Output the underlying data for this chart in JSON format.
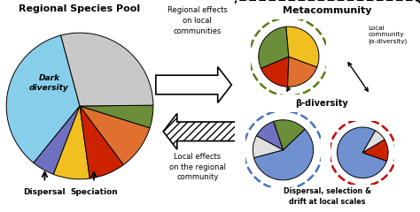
{
  "title_left": "Regional Species Pool",
  "title_right": "Metacommunity",
  "big_pie": {
    "sizes": [
      35,
      5,
      8,
      8,
      10,
      5,
      29
    ],
    "colors": [
      "#87CEEB",
      "#7070C0",
      "#F0C020",
      "#CC2200",
      "#E07030",
      "#6B8E3A",
      "#C8C8C8"
    ],
    "startangle": 105
  },
  "top_pie": {
    "sizes": [
      30,
      18,
      20,
      32
    ],
    "colors": [
      "#6B8E3A",
      "#CC2200",
      "#E07030",
      "#F0C020"
    ],
    "startangle": 95
  },
  "left_pie": {
    "sizes": [
      58,
      18,
      12,
      12
    ],
    "colors": [
      "#7090D0",
      "#6B8E3A",
      "#7070C0",
      "#E0E0E0"
    ],
    "startangle": 195
  },
  "right_pie": {
    "sizes": [
      78,
      14,
      8
    ],
    "colors": [
      "#7090D0",
      "#CC2200",
      "#E0E0E0"
    ],
    "startangle": 60
  },
  "arrow_right_text": "Regional effects\non local\ncommunities",
  "arrow_left_text": "Local effects\non the regional\ncommunity",
  "beta_text": "β-diversity",
  "local_community_text": "Local\ncommunity\n(α-diversity)",
  "dispersal_text": "Dispersal, selection &\ndrift at local scales",
  "dispersal_label": "Dispersal",
  "speciation_label": "Speciation"
}
